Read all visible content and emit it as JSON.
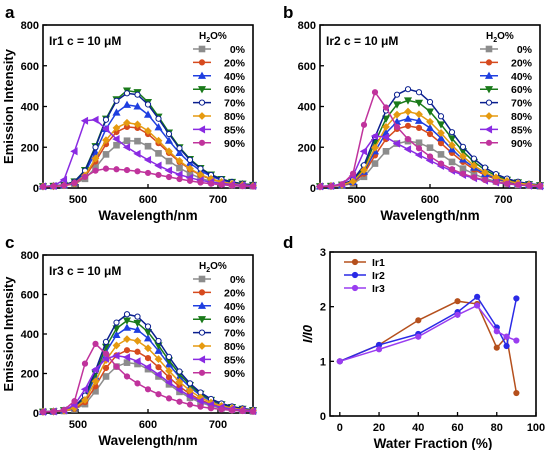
{
  "chart_data": [
    {
      "panel": "a",
      "type": "line",
      "title": "Ir1 c = 10 μM",
      "xlabel": "Wavelength/nm",
      "ylabel": "Emission Intensity",
      "xlim": [
        450,
        750
      ],
      "ylim": [
        0,
        800
      ],
      "xticks": [
        500,
        600,
        700
      ],
      "yticks": [
        0,
        200,
        400,
        600,
        800
      ],
      "legend_title": "H2O%",
      "legend_position": "top-right",
      "x": [
        450,
        465,
        480,
        495,
        510,
        525,
        540,
        555,
        570,
        585,
        600,
        615,
        630,
        645,
        660,
        675,
        690,
        705,
        720,
        735,
        750
      ],
      "series": [
        {
          "name": "0%",
          "color": "#8c8c8c",
          "marker": "square",
          "values": [
            8,
            9,
            12,
            20,
            45,
            100,
            165,
            210,
            232,
            230,
            205,
            170,
            132,
            98,
            70,
            48,
            33,
            22,
            15,
            11,
            9
          ]
        },
        {
          "name": "20%",
          "color": "#d64a1e",
          "marker": "circle",
          "values": [
            8,
            9,
            12,
            22,
            55,
            130,
            215,
            275,
            300,
            295,
            265,
            220,
            172,
            128,
            92,
            63,
            43,
            29,
            20,
            14,
            11
          ]
        },
        {
          "name": "40%",
          "color": "#1f3fe0",
          "marker": "triangle",
          "values": [
            8,
            10,
            14,
            28,
            75,
            175,
            290,
            370,
            408,
            400,
            360,
            298,
            232,
            172,
            122,
            85,
            58,
            39,
            27,
            19,
            14
          ]
        },
        {
          "name": "60%",
          "color": "#1a7a1a",
          "marker": "triangle-down",
          "values": [
            8,
            10,
            15,
            32,
            88,
            205,
            340,
            435,
            478,
            470,
            422,
            350,
            272,
            200,
            142,
            98,
            66,
            44,
            30,
            21,
            15
          ]
        },
        {
          "name": "70%",
          "color": "#0a1f8f",
          "marker": "circle-open",
          "values": [
            8,
            10,
            15,
            31,
            85,
            200,
            335,
            428,
            465,
            458,
            410,
            340,
            265,
            195,
            138,
            95,
            64,
            43,
            29,
            20,
            15
          ]
        },
        {
          "name": "80%",
          "color": "#e59a10",
          "marker": "diamond",
          "values": [
            8,
            9,
            13,
            24,
            62,
            145,
            235,
            295,
            320,
            312,
            280,
            232,
            180,
            133,
            95,
            66,
            45,
            30,
            21,
            15,
            11
          ]
        },
        {
          "name": "85%",
          "color": "#8a2be2",
          "marker": "triangle-left",
          "values": [
            8,
            10,
            40,
            180,
            330,
            335,
            290,
            240,
            200,
            168,
            138,
            110,
            86,
            66,
            50,
            38,
            29,
            22,
            17,
            13,
            10
          ]
        },
        {
          "name": "90%",
          "color": "#c0339c",
          "marker": "circle",
          "values": [
            6,
            8,
            12,
            25,
            55,
            85,
            95,
            92,
            88,
            82,
            74,
            64,
            54,
            44,
            35,
            27,
            21,
            16,
            12,
            9,
            7
          ]
        }
      ]
    },
    {
      "panel": "b",
      "type": "line",
      "title": "Ir2 c = 10 μM",
      "xlabel": "Wavelength/nm",
      "ylabel": "",
      "xlim": [
        450,
        750
      ],
      "ylim": [
        0,
        800
      ],
      "xticks": [
        500,
        600,
        700
      ],
      "yticks": [
        0,
        200,
        400,
        600,
        800
      ],
      "legend_title": "H2O%",
      "legend_position": "top-right",
      "x": [
        450,
        465,
        480,
        495,
        510,
        525,
        540,
        555,
        570,
        585,
        600,
        615,
        630,
        645,
        660,
        675,
        690,
        705,
        720,
        735,
        750
      ],
      "series": [
        {
          "name": "0%",
          "color": "#8c8c8c",
          "marker": "square",
          "values": [
            8,
            9,
            12,
            22,
            55,
            120,
            180,
            218,
            230,
            222,
            198,
            165,
            128,
            95,
            68,
            47,
            32,
            22,
            15,
            11,
            8
          ]
        },
        {
          "name": "20%",
          "color": "#d64a1e",
          "marker": "circle",
          "values": [
            8,
            9,
            13,
            26,
            70,
            160,
            240,
            290,
            305,
            295,
            265,
            220,
            172,
            128,
            91,
            63,
            43,
            29,
            20,
            14,
            10
          ]
        },
        {
          "name": "40%",
          "color": "#1f3fe0",
          "marker": "triangle",
          "values": [
            8,
            10,
            14,
            30,
            80,
            180,
            270,
            325,
            340,
            330,
            295,
            245,
            190,
            140,
            100,
            69,
            47,
            32,
            22,
            15,
            11
          ]
        },
        {
          "name": "60%",
          "color": "#1a7a1a",
          "marker": "triangle-down",
          "values": [
            8,
            10,
            16,
            36,
            100,
            225,
            340,
            410,
            430,
            418,
            375,
            312,
            243,
            180,
            128,
            89,
            60,
            40,
            28,
            19,
            14
          ]
        },
        {
          "name": "70%",
          "color": "#0a1f8f",
          "marker": "circle-open",
          "values": [
            8,
            10,
            17,
            40,
            112,
            250,
            380,
            458,
            485,
            470,
            422,
            352,
            274,
            202,
            144,
            100,
            68,
            46,
            31,
            21,
            15
          ]
        },
        {
          "name": "80%",
          "color": "#e59a10",
          "marker": "diamond",
          "values": [
            8,
            10,
            15,
            32,
            88,
            198,
            300,
            360,
            375,
            362,
            325,
            270,
            210,
            155,
            110,
            76,
            52,
            35,
            24,
            17,
            12
          ]
        },
        {
          "name": "85%",
          "color": "#8a2be2",
          "marker": "triangle-left",
          "values": [
            8,
            10,
            20,
            60,
            180,
            255,
            250,
            218,
            190,
            162,
            135,
            108,
            84,
            64,
            48,
            36,
            27,
            20,
            15,
            11,
            8
          ]
        },
        {
          "name": "90%",
          "color": "#c0339c",
          "marker": "circle",
          "values": [
            6,
            8,
            18,
            70,
            310,
            470,
            395,
            300,
            240,
            195,
            155,
            120,
            92,
            70,
            52,
            39,
            29,
            21,
            16,
            12,
            9
          ]
        }
      ]
    },
    {
      "panel": "c",
      "type": "line",
      "title": "Ir3 c = 10 μM",
      "xlabel": "Wavelength/nm",
      "ylabel": "Emission Intensity",
      "xlim": [
        450,
        750
      ],
      "ylim": [
        0,
        800
      ],
      "xticks": [
        500,
        600,
        700
      ],
      "yticks": [
        0,
        200,
        400,
        600,
        800
      ],
      "legend_title": "H2O%",
      "legend_position": "top-right",
      "x": [
        450,
        465,
        480,
        495,
        510,
        525,
        540,
        555,
        570,
        585,
        600,
        615,
        630,
        645,
        660,
        675,
        690,
        705,
        720,
        735,
        750
      ],
      "series": [
        {
          "name": "0%",
          "color": "#8c8c8c",
          "marker": "square",
          "values": [
            6,
            7,
            10,
            18,
            45,
            110,
            185,
            235,
            255,
            248,
            222,
            185,
            145,
            107,
            77,
            53,
            36,
            24,
            17,
            12,
            8
          ]
        },
        {
          "name": "20%",
          "color": "#d64a1e",
          "marker": "circle",
          "values": [
            6,
            7,
            11,
            21,
            55,
            135,
            228,
            292,
            318,
            310,
            278,
            232,
            181,
            134,
            96,
            66,
            45,
            30,
            21,
            15,
            10
          ]
        },
        {
          "name": "40%",
          "color": "#1f3fe0",
          "marker": "triangle",
          "values": [
            6,
            8,
            13,
            28,
            75,
            185,
            310,
            395,
            432,
            421,
            378,
            315,
            246,
            182,
            130,
            90,
            61,
            41,
            28,
            20,
            14
          ]
        },
        {
          "name": "60%",
          "color": "#1a7a1a",
          "marker": "triangle-down",
          "values": [
            6,
            8,
            14,
            30,
            82,
            200,
            335,
            428,
            468,
            456,
            410,
            342,
            266,
            197,
            141,
            97,
            66,
            44,
            30,
            21,
            15
          ]
        },
        {
          "name": "70%",
          "color": "#0a1f8f",
          "marker": "circle-open",
          "values": [
            6,
            8,
            14,
            32,
            88,
            215,
            360,
            458,
            500,
            488,
            438,
            365,
            284,
            210,
            150,
            104,
            71,
            48,
            33,
            23,
            16
          ]
        },
        {
          "name": "80%",
          "color": "#e59a10",
          "marker": "diamond",
          "values": [
            6,
            8,
            12,
            25,
            66,
            160,
            268,
            342,
            374,
            365,
            328,
            273,
            213,
            158,
            113,
            78,
            53,
            36,
            25,
            17,
            12
          ]
        },
        {
          "name": "85%",
          "color": "#8a2be2",
          "marker": "triangle-left",
          "values": [
            6,
            8,
            14,
            40,
            120,
            220,
            275,
            290,
            282,
            262,
            232,
            195,
            155,
            117,
            85,
            60,
            42,
            29,
            20,
            14,
            10
          ]
        },
        {
          "name": "90%",
          "color": "#c0339c",
          "marker": "circle",
          "values": [
            5,
            7,
            15,
            60,
            250,
            350,
            300,
            235,
            185,
            150,
            120,
            95,
            74,
            57,
            43,
            32,
            24,
            18,
            13,
            10,
            7
          ]
        }
      ]
    },
    {
      "panel": "d",
      "type": "line",
      "title": "",
      "xlabel": "Water Fraction (%)",
      "ylabel": "I/I0",
      "xlim": [
        -5,
        100
      ],
      "ylim": [
        0,
        3
      ],
      "xticks": [
        0,
        20,
        40,
        60,
        80,
        100
      ],
      "yticks": [
        0,
        1,
        2,
        3
      ],
      "legend_position": "top-left",
      "x": [
        0,
        20,
        40,
        60,
        70,
        80,
        85,
        90
      ],
      "series": [
        {
          "name": "Ir1",
          "color": "#b5501d",
          "marker": "circle",
          "values": [
            1.0,
            1.3,
            1.75,
            2.1,
            2.05,
            1.25,
            1.45,
            0.42
          ]
        },
        {
          "name": "Ir2",
          "color": "#2a2ae6",
          "marker": "circle",
          "values": [
            1.0,
            1.3,
            1.5,
            1.9,
            2.18,
            1.62,
            1.28,
            2.15
          ]
        },
        {
          "name": "Ir3",
          "color": "#9a3df0",
          "marker": "circle",
          "values": [
            1.0,
            1.22,
            1.45,
            1.85,
            2.02,
            1.55,
            1.45,
            1.38
          ]
        }
      ]
    }
  ],
  "panel_labels": [
    "a",
    "b",
    "c",
    "d"
  ]
}
